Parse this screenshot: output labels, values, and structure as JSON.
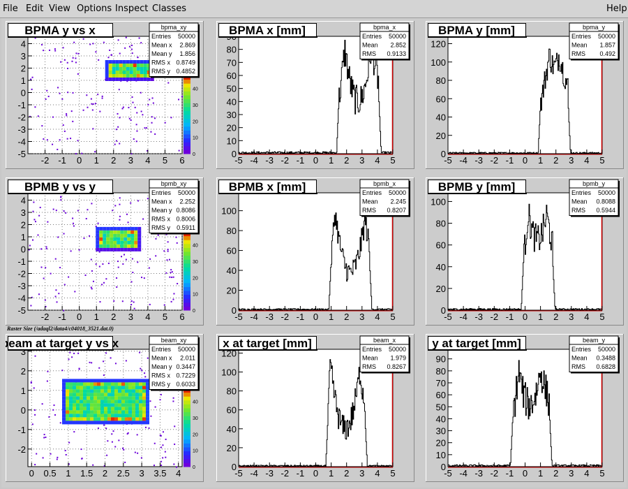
{
  "menu": {
    "items": [
      "File",
      "Edit",
      "View",
      "Options",
      "Inspect",
      "Classes"
    ],
    "help": "Help"
  },
  "caption": "Raster Size (/adaql2/data4/c04018_3521.dat.0)",
  "colors": {
    "background": "#cccccc",
    "frame": "#ffffff",
    "hist_line": "#000000",
    "axis_mark": "#cc0000"
  },
  "chart_data": [
    {
      "id": "bpma_xy",
      "type": "heatmap",
      "title": "BPMA y vs x",
      "stats": {
        "name": "bpma_xy",
        "rows": [
          [
            "Entries",
            "50000"
          ],
          [
            "Mean x",
            "2.869"
          ],
          [
            "Mean y",
            "1.856"
          ],
          [
            "RMS x",
            "0.8749"
          ],
          [
            "RMS y",
            "0.4852"
          ]
        ]
      },
      "xlim": [
        -3,
        6
      ],
      "ylim": [
        -5,
        4.6
      ],
      "xticks": [
        -2,
        -1,
        0,
        1,
        2,
        3,
        4,
        5,
        6
      ],
      "yticks": [
        -5,
        -4,
        -3,
        -2,
        -1,
        0,
        1,
        2,
        3,
        4
      ],
      "core": {
        "x": [
          1.55,
          4.2
        ],
        "y": [
          1.1,
          2.6
        ]
      },
      "palette": {
        "ticks": [
          "0",
          "10",
          "20",
          "30",
          "40"
        ],
        "max": 48
      }
    },
    {
      "id": "bpma_x",
      "type": "area",
      "title": "BPMA x [mm]",
      "stats": {
        "name": "bpma_x",
        "rows": [
          [
            "Entries",
            "50000"
          ],
          [
            "Mean",
            "2.852"
          ],
          [
            "RMS",
            "0.9133"
          ]
        ]
      },
      "xlim": [
        -5,
        5
      ],
      "ylim": [
        0,
        90
      ],
      "xticks": [
        -5,
        -4,
        -3,
        -2,
        -1,
        0,
        1,
        2,
        3,
        4,
        5
      ],
      "yticks": [
        0,
        10,
        20,
        30,
        40,
        50,
        60,
        70,
        80,
        90
      ],
      "peaks": [
        [
          1.9,
          80
        ],
        [
          3.6,
          82
        ]
      ],
      "dip": 40,
      "edges": [
        1.5,
        4.1
      ],
      "noise": 12
    },
    {
      "id": "bpma_y",
      "type": "area",
      "title": "BPMA y [mm]",
      "stats": {
        "name": "bpma_y",
        "rows": [
          [
            "Entries",
            "50000"
          ],
          [
            "Mean",
            "1.857"
          ],
          [
            "RMS",
            "0.492"
          ]
        ]
      },
      "xlim": [
        -5,
        5
      ],
      "ylim": [
        0,
        128
      ],
      "xticks": [
        -5,
        -4,
        -3,
        -2,
        -1,
        0,
        1,
        2,
        3,
        4,
        5
      ],
      "yticks": [
        0,
        20,
        40,
        60,
        80,
        100,
        120
      ],
      "peaks": [
        [
          1.6,
          108
        ],
        [
          2.2,
          108
        ]
      ],
      "dip": 95,
      "edges": [
        1.0,
        2.8
      ],
      "noise": 14
    },
    {
      "id": "bpmb_xy",
      "type": "heatmap",
      "title": "BPMB y vs y",
      "stats": {
        "name": "bpmb_xy",
        "rows": [
          [
            "Entries",
            "50000"
          ],
          [
            "Mean x",
            "2.252"
          ],
          [
            "Mean y",
            "0.8086"
          ],
          [
            "RMS x",
            "0.8006"
          ],
          [
            "RMS y",
            "0.5911"
          ]
        ]
      },
      "xlim": [
        -3,
        6
      ],
      "ylim": [
        -5,
        4.6
      ],
      "xticks": [
        -2,
        -1,
        0,
        1,
        2,
        3,
        4,
        5,
        6
      ],
      "yticks": [
        -5,
        -4,
        -3,
        -2,
        -1,
        0,
        1,
        2,
        3,
        4
      ],
      "core": {
        "x": [
          1.0,
          3.5
        ],
        "y": [
          0.0,
          1.75
        ]
      },
      "palette": {
        "ticks": [
          "0",
          "10",
          "20",
          "30",
          "40"
        ],
        "max": 48
      }
    },
    {
      "id": "bpmb_x",
      "type": "area",
      "title": "BPMB x [mm]",
      "stats": {
        "name": "bpmb_x",
        "rows": [
          [
            "Entries",
            "50000"
          ],
          [
            "Mean",
            "2.245"
          ],
          [
            "RMS",
            "0.8207"
          ]
        ]
      },
      "xlim": [
        -5,
        5
      ],
      "ylim": [
        0,
        118
      ],
      "xticks": [
        -5,
        -4,
        -3,
        -2,
        -1,
        0,
        1,
        2,
        3,
        4,
        5
      ],
      "yticks": [
        0,
        20,
        40,
        60,
        80,
        100
      ],
      "peaks": [
        [
          1.25,
          100
        ],
        [
          3.2,
          92
        ]
      ],
      "dip": 38,
      "edges": [
        1.0,
        3.5
      ],
      "noise": 12
    },
    {
      "id": "bpmb_y",
      "type": "area",
      "title": "BPMB y [mm]",
      "stats": {
        "name": "bpmb_y",
        "rows": [
          [
            "Entries",
            "50000"
          ],
          [
            "Mean",
            "0.8088"
          ],
          [
            "RMS",
            "0.5944"
          ]
        ]
      },
      "xlim": [
        -5,
        5
      ],
      "ylim": [
        0,
        108
      ],
      "xticks": [
        -5,
        -4,
        -3,
        -2,
        -1,
        0,
        1,
        2,
        3,
        4,
        5
      ],
      "yticks": [
        0,
        20,
        40,
        60,
        80,
        100
      ],
      "peaks": [
        [
          0.2,
          90
        ],
        [
          1.4,
          88
        ]
      ],
      "dip": 65,
      "edges": [
        -0.1,
        1.8
      ],
      "noise": 14
    },
    {
      "id": "beam_xy",
      "type": "heatmap",
      "title": "beam at target y vs x",
      "stats": {
        "name": "beam_xy",
        "rows": [
          [
            "Entries",
            "50000"
          ],
          [
            "Mean x",
            "2.011"
          ],
          [
            "Mean y",
            "0.3447"
          ],
          [
            "RMS x",
            "0.7229"
          ],
          [
            "RMS y",
            "0.6033"
          ]
        ]
      },
      "xlim": [
        -0.1,
        4.1
      ],
      "ylim": [
        -2.9,
        3.1
      ],
      "xticks": [
        0,
        0.5,
        1,
        1.5,
        2,
        2.5,
        3,
        3.5,
        4
      ],
      "yticks": [
        -2,
        -1,
        0,
        1,
        2,
        3
      ],
      "core": {
        "x": [
          0.85,
          3.2
        ],
        "y": [
          -0.7,
          1.55
        ]
      },
      "palette": {
        "ticks": [
          "0",
          "10",
          "20",
          "30",
          "40"
        ],
        "max": 48
      }
    },
    {
      "id": "beam_x",
      "type": "area",
      "title": "x at target [mm]",
      "stats": {
        "name": "beam_x",
        "rows": [
          [
            "Entries",
            "50000"
          ],
          [
            "Mean",
            "1.979"
          ],
          [
            "RMS",
            "0.8267"
          ]
        ]
      },
      "xlim": [
        -5,
        5
      ],
      "ylim": [
        0,
        124
      ],
      "xticks": [
        -5,
        -4,
        -3,
        -2,
        -1,
        0,
        1,
        2,
        3,
        4,
        5
      ],
      "yticks": [
        0,
        20,
        40,
        60,
        80,
        100,
        120
      ],
      "peaks": [
        [
          0.95,
          108
        ],
        [
          2.85,
          100
        ]
      ],
      "dip": 40,
      "edges": [
        0.8,
        3.2
      ],
      "noise": 14
    },
    {
      "id": "beam_y",
      "type": "area",
      "title": "y at target [mm]",
      "stats": {
        "name": "beam_y",
        "rows": [
          [
            "Entries",
            "50000"
          ],
          [
            "Mean",
            "0.3488"
          ],
          [
            "RMS",
            "0.6828"
          ]
        ]
      },
      "xlim": [
        -5,
        5
      ],
      "ylim": [
        0,
        98
      ],
      "xticks": [
        -5,
        -4,
        -3,
        -2,
        -1,
        0,
        1,
        2,
        3,
        4,
        5
      ],
      "yticks": [
        0,
        10,
        20,
        30,
        40,
        50,
        60,
        70,
        80,
        90
      ],
      "peaks": [
        [
          -0.4,
          80
        ],
        [
          1.0,
          80
        ]
      ],
      "dip": 52,
      "edges": [
        -0.8,
        1.6
      ],
      "noise": 14
    }
  ]
}
